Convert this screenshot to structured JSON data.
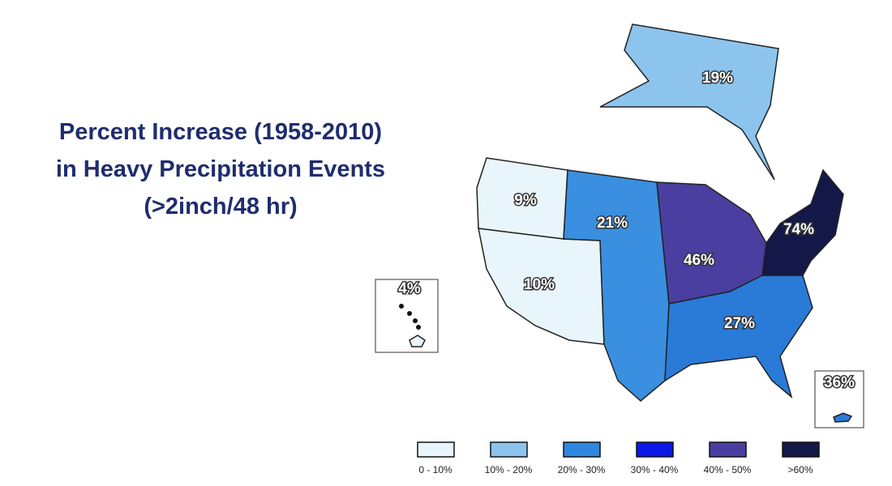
{
  "title": [
    "Percent Increase (1958-2010)",
    "in Heavy Precipitation Events",
    "(>2inch/48 hr)"
  ],
  "regions": [
    {
      "label": "19%",
      "color": "#8cc4ee"
    },
    {
      "label": "9%",
      "color": "#e8f6fb"
    },
    {
      "label": "10%",
      "color": "#e8f6fb"
    },
    {
      "label": "21%",
      "color": "#3a8fe0"
    },
    {
      "label": "46%",
      "color": "#4a3fa0"
    },
    {
      "label": "27%",
      "color": "#2a7ad8"
    },
    {
      "label": "74%",
      "color": "#141848"
    },
    {
      "label": "4%",
      "color": "#e8f6fb"
    },
    {
      "label": "36%",
      "color": "#2a7ad8"
    }
  ],
  "legend": [
    {
      "label": "0 - 10%",
      "color": "#e8f6fb"
    },
    {
      "label": "10% - 20%",
      "color": "#8cc4ee"
    },
    {
      "label": "20% - 30%",
      "color": "#2f87e0"
    },
    {
      "label": "30% - 40%",
      "color": "#0a18e8"
    },
    {
      "label": "40% - 50%",
      "color": "#4a3fa0"
    },
    {
      "label": ">60%",
      "color": "#141848"
    }
  ]
}
